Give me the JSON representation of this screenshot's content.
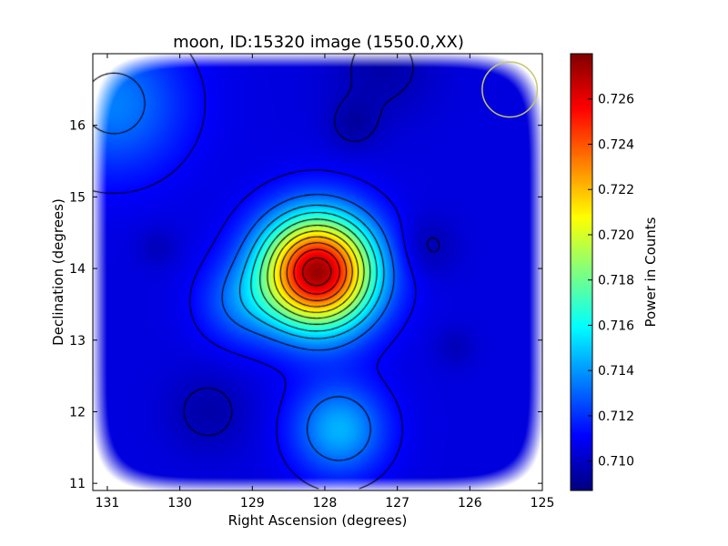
{
  "chart_data": {
    "type": "heatmap",
    "title": "moon, ID:15320 image (1550.0,XX)",
    "xlabel": "Right Ascension (degrees)",
    "ylabel": "Declination (degrees)",
    "xlim": [
      131.2,
      125.0
    ],
    "ylim": [
      10.9,
      17.0
    ],
    "x_ticks": [
      "131",
      "130",
      "129",
      "128",
      "127",
      "126",
      "125"
    ],
    "x_tick_values": [
      131,
      130,
      129,
      128,
      127,
      126,
      125
    ],
    "y_ticks": [
      "11",
      "12",
      "13",
      "14",
      "15",
      "16"
    ],
    "y_tick_values": [
      11,
      12,
      13,
      14,
      15,
      16
    ],
    "colorbar": {
      "label": "Power in Counts",
      "range": [
        0.7087,
        0.728
      ],
      "ticks": [
        "0.710",
        "0.712",
        "0.714",
        "0.716",
        "0.718",
        "0.720",
        "0.722",
        "0.724",
        "0.726"
      ],
      "tick_values": [
        0.71,
        0.712,
        0.714,
        0.716,
        0.718,
        0.72,
        0.722,
        0.724,
        0.726
      ],
      "colormap": "jet"
    },
    "baseline_level": 0.7105,
    "features": [
      {
        "kind": "peak",
        "ra": 128.1,
        "dec": 13.95,
        "value": 0.7275,
        "width_deg": 0.55
      },
      {
        "kind": "bump",
        "ra": 127.8,
        "dec": 11.75,
        "value": 0.7145,
        "width_deg": 0.45
      },
      {
        "kind": "bump",
        "ra": 130.9,
        "dec": 16.3,
        "value": 0.7135,
        "width_deg": 0.7
      },
      {
        "kind": "bump",
        "ra": 129.2,
        "dec": 13.5,
        "value": 0.7125,
        "width_deg": 0.4
      },
      {
        "kind": "dip",
        "ra": 129.6,
        "dec": 12.0,
        "value": 0.7095,
        "width_deg": 0.4
      },
      {
        "kind": "dip",
        "ra": 126.6,
        "dec": 14.3,
        "value": 0.7095,
        "width_deg": 0.3
      },
      {
        "kind": "dip",
        "ra": 127.6,
        "dec": 16.0,
        "value": 0.7095,
        "width_deg": 0.25
      },
      {
        "kind": "dip",
        "ra": 130.3,
        "dec": 14.3,
        "value": 0.7098,
        "width_deg": 0.2
      },
      {
        "kind": "dip",
        "ra": 126.2,
        "dec": 12.9,
        "value": 0.7098,
        "width_deg": 0.2
      },
      {
        "kind": "dip",
        "ra": 127.2,
        "dec": 16.8,
        "value": 0.7095,
        "width_deg": 0.5
      }
    ],
    "contour_levels": [
      0.7098,
      0.7111,
      0.713,
      0.7146,
      0.716,
      0.7175,
      0.719,
      0.7205,
      0.722,
      0.7235,
      0.725,
      0.7265
    ],
    "beam_circle": {
      "ra": 125.45,
      "dec": 16.5,
      "radius_deg": 0.38,
      "color": "#c8c86e"
    },
    "grid": false
  }
}
